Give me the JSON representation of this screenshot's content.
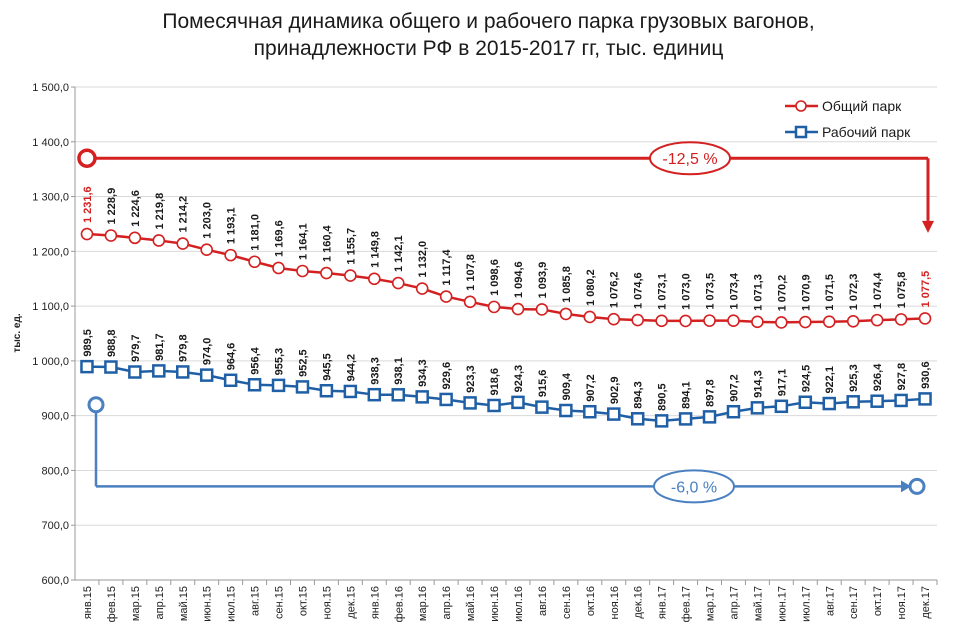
{
  "title": {
    "line1": "Помесячная динамика общего и рабочего парка грузовых вагонов,",
    "line2": "принадлежности РФ в 2015-2017 гг, тыс. единиц"
  },
  "colors": {
    "total": "#d42020",
    "working": "#1f5fa6",
    "working_arrow": "#4a7fc0",
    "axis": "#999999"
  },
  "chart_data": {
    "type": "line",
    "ylabel": "тыс. ед.",
    "ylim": [
      600,
      1500
    ],
    "yticks": [
      "600,0",
      "700,0",
      "800,0",
      "900,0",
      "1 000,0",
      "1 100,0",
      "1 200,0",
      "1 300,0",
      "1 400,0",
      "1 500,0"
    ],
    "grid": true,
    "legend_position": "top-right",
    "categories": [
      "янв.15",
      "фев.15",
      "мар.15",
      "апр.15",
      "май.15",
      "июн.15",
      "июл.15",
      "авг.15",
      "сен.15",
      "окт.15",
      "ноя.15",
      "дек.15",
      "янв.16",
      "фев.16",
      "мар.16",
      "апр.16",
      "май.16",
      "июн.16",
      "июл.16",
      "авг.16",
      "сен.16",
      "окт.16",
      "ноя.16",
      "дек.16",
      "янв.17",
      "фев.17",
      "мар.17",
      "апр.17",
      "май.17",
      "июн.17",
      "июл.17",
      "авг.17",
      "сен.17",
      "окт.17",
      "ноя.17",
      "дек.17"
    ],
    "series": [
      {
        "name": "Общий парк",
        "values": [
          1231.6,
          1228.9,
          1224.6,
          1219.8,
          1214.2,
          1203.0,
          1193.1,
          1181.0,
          1169.6,
          1164.1,
          1160.4,
          1155.7,
          1149.8,
          1142.1,
          1132.0,
          1117.4,
          1107.8,
          1098.6,
          1094.6,
          1093.9,
          1085.8,
          1080.2,
          1076.2,
          1074.6,
          1073.1,
          1073.0,
          1073.5,
          1073.4,
          1071.3,
          1070.2,
          1070.9,
          1071.5,
          1072.3,
          1074.4,
          1075.8,
          1077.5
        ],
        "labels": [
          "1 231,6",
          "1 228,9",
          "1 224,6",
          "1 219,8",
          "1 214,2",
          "1 203,0",
          "1 193,1",
          "1 181,0",
          "1 169,6",
          "1 164,1",
          "1 160,4",
          "1 155,7",
          "1 149,8",
          "1 142,1",
          "1 132,0",
          "1 117,4",
          "1 107,8",
          "1 098,6",
          "1 094,6",
          "1 093,9",
          "1 085,8",
          "1 080,2",
          "1 076,2",
          "1 074,6",
          "1 073,1",
          "1 073,0",
          "1 073,5",
          "1 073,4",
          "1 071,3",
          "1 070,2",
          "1 070,9",
          "1 071,5",
          "1 072,3",
          "1 074,4",
          "1 075,8",
          "1 077,5"
        ]
      },
      {
        "name": "Рабочий парк",
        "values": [
          989.5,
          988.8,
          979.7,
          981.7,
          979.8,
          974.0,
          964.6,
          956.4,
          955.3,
          952.5,
          945.5,
          944.2,
          938.3,
          938.1,
          934.3,
          929.6,
          923.3,
          918.6,
          924.3,
          915.6,
          909.4,
          907.2,
          902.9,
          894.3,
          890.5,
          894.1,
          897.8,
          907.2,
          914.3,
          917.1,
          924.5,
          922.1,
          925.3,
          926.4,
          927.8,
          930.6
        ],
        "labels": [
          "989,5",
          "988,8",
          "979,7",
          "981,7",
          "979,8",
          "974,0",
          "964,6",
          "956,4",
          "955,3",
          "952,5",
          "945,5",
          "944,2",
          "938,3",
          "938,1",
          "934,3",
          "929,6",
          "923,3",
          "918,6",
          "924,3",
          "915,6",
          "909,4",
          "907,2",
          "902,9",
          "894,3",
          "890,5",
          "894,1",
          "897,8",
          "907,2",
          "914,3",
          "917,1",
          "924,5",
          "922,1",
          "925,3",
          "926,4",
          "927,8",
          "930,6"
        ]
      }
    ],
    "annotations": [
      {
        "text": "-12,5 %",
        "series": "Общий парк",
        "from_value": 1370,
        "to_value": 1230
      },
      {
        "text": "-6,0 %",
        "series": "Рабочий парк",
        "from_value": 920,
        "to_value": 771
      }
    ]
  }
}
